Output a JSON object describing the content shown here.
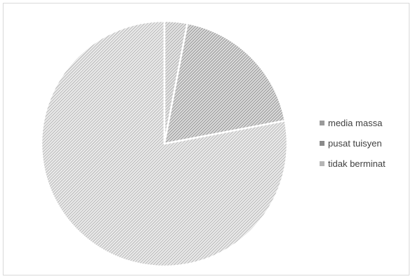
{
  "chart_data": {
    "type": "pie",
    "title": "",
    "series": [
      {
        "categories": [
          "media massa",
          "pusat tuisyen",
          "tidak berminat"
        ],
        "values": [
          3,
          19,
          78
        ]
      }
    ],
    "legend_position": "right",
    "colors": [
      "#b8b8b8",
      "#a4a4a4",
      "#c4c4c4"
    ]
  }
}
